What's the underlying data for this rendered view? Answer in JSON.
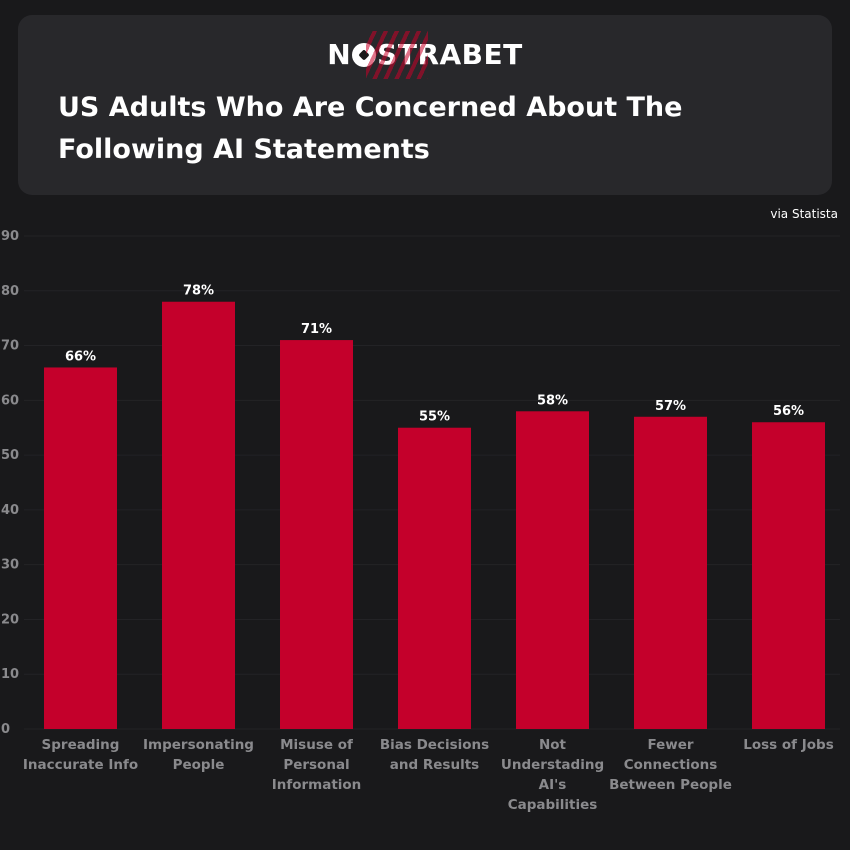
{
  "header": {
    "logo_left": "N",
    "logo_right": "STRABET",
    "title": "US Adults Who Are Concerned About The Following AI Statements"
  },
  "source": "via Statista",
  "colors": {
    "bar": "#c4002b",
    "background": "#19191b",
    "card": "#28282b",
    "axis_text": "#8a8a8d"
  },
  "chart_data": {
    "type": "bar",
    "title": "US Adults Who Are Concerned About The Following AI Statements",
    "xlabel": "",
    "ylabel": "",
    "ylim": [
      0,
      90
    ],
    "yticks": [
      0,
      10,
      20,
      30,
      40,
      50,
      60,
      70,
      80,
      90
    ],
    "grid": true,
    "categories": [
      [
        "Spreading",
        "Inaccurate Info"
      ],
      [
        "Impersonating",
        "People"
      ],
      [
        "Misuse of",
        "Personal",
        "Information"
      ],
      [
        "Bias Decisions",
        "and Results"
      ],
      [
        "Not",
        "Understading",
        "AI's",
        "Capabilities"
      ],
      [
        "Fewer",
        "Connections",
        "Between People"
      ],
      [
        "Loss of Jobs"
      ]
    ],
    "values": [
      66,
      78,
      71,
      55,
      58,
      57,
      56
    ],
    "data_labels": [
      "66%",
      "78%",
      "71%",
      "55%",
      "58%",
      "57%",
      "56%"
    ]
  }
}
